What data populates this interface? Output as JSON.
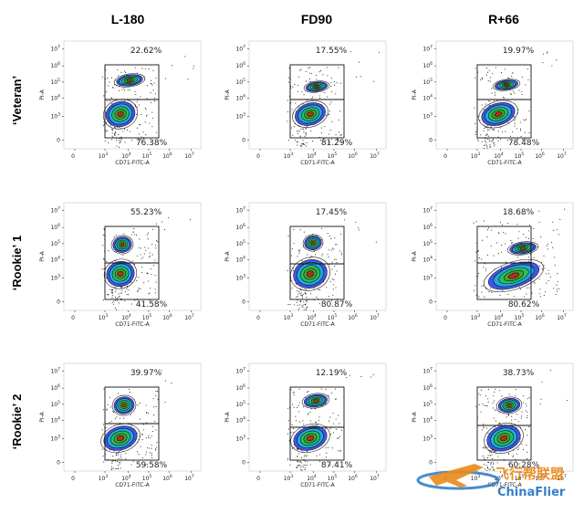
{
  "figure": {
    "column_headers": [
      "L-180",
      "FD90",
      "R+66"
    ],
    "row_headers": [
      "‘Veteran’",
      "‘Rookie’ 1",
      "‘Rookie’ 2"
    ]
  },
  "chart_data": {
    "type": "scatter",
    "subtype": "flow-cytometry-density-plot grid",
    "xlabel": "CD71-FITC-A",
    "ylabel": "PI-A",
    "x_ticks": [
      "0",
      "10^3",
      "10^4",
      "10^5",
      "10^6",
      "10^7"
    ],
    "y_ticks": [
      "0",
      "10^3",
      "10^4",
      "10^5",
      "10^6",
      "10^7"
    ],
    "scale": "biexponential (log)",
    "panels": [
      {
        "row": "‘Veteran’",
        "column": "L-180",
        "upper_gate_pct": "22.62%",
        "lower_gate_pct": "76.38%"
      },
      {
        "row": "‘Veteran’",
        "column": "FD90",
        "upper_gate_pct": "17.55%",
        "lower_gate_pct": "81.29%"
      },
      {
        "row": "‘Veteran’",
        "column": "R+66",
        "upper_gate_pct": "19.97%",
        "lower_gate_pct": "78.48%"
      },
      {
        "row": "‘Rookie’ 1",
        "column": "L-180",
        "upper_gate_pct": "55.23%",
        "lower_gate_pct": "41.58%"
      },
      {
        "row": "‘Rookie’ 1",
        "column": "FD90",
        "upper_gate_pct": "17.45%",
        "lower_gate_pct": "80.87%"
      },
      {
        "row": "‘Rookie’ 1",
        "column": "R+66",
        "upper_gate_pct": "18.68%",
        "lower_gate_pct": "80.62%"
      },
      {
        "row": "‘Rookie’ 2",
        "column": "L-180",
        "upper_gate_pct": "39.97%",
        "lower_gate_pct": "59.58%"
      },
      {
        "row": "‘Rookie’ 2",
        "column": "FD90",
        "upper_gate_pct": "12.19%",
        "lower_gate_pct": "87.41%"
      },
      {
        "row": "‘Rookie’ 2",
        "column": "R+66",
        "upper_gate_pct": "38.73%",
        "lower_gate_pct": "60.28%"
      }
    ],
    "grid": false,
    "legend": "none"
  },
  "watermark": {
    "text_cn": "飞行帮联盟",
    "text_en": "ChinaFlier",
    "colors": {
      "primary": "#2a78c8",
      "accent": "#e98a1b"
    }
  },
  "colors": {
    "contour_outer": "#1a2fd6",
    "contour_mid": "#11a8d0",
    "contour_inner": "#22b14c",
    "contour_core": "#d62222",
    "gate": "#111111"
  }
}
